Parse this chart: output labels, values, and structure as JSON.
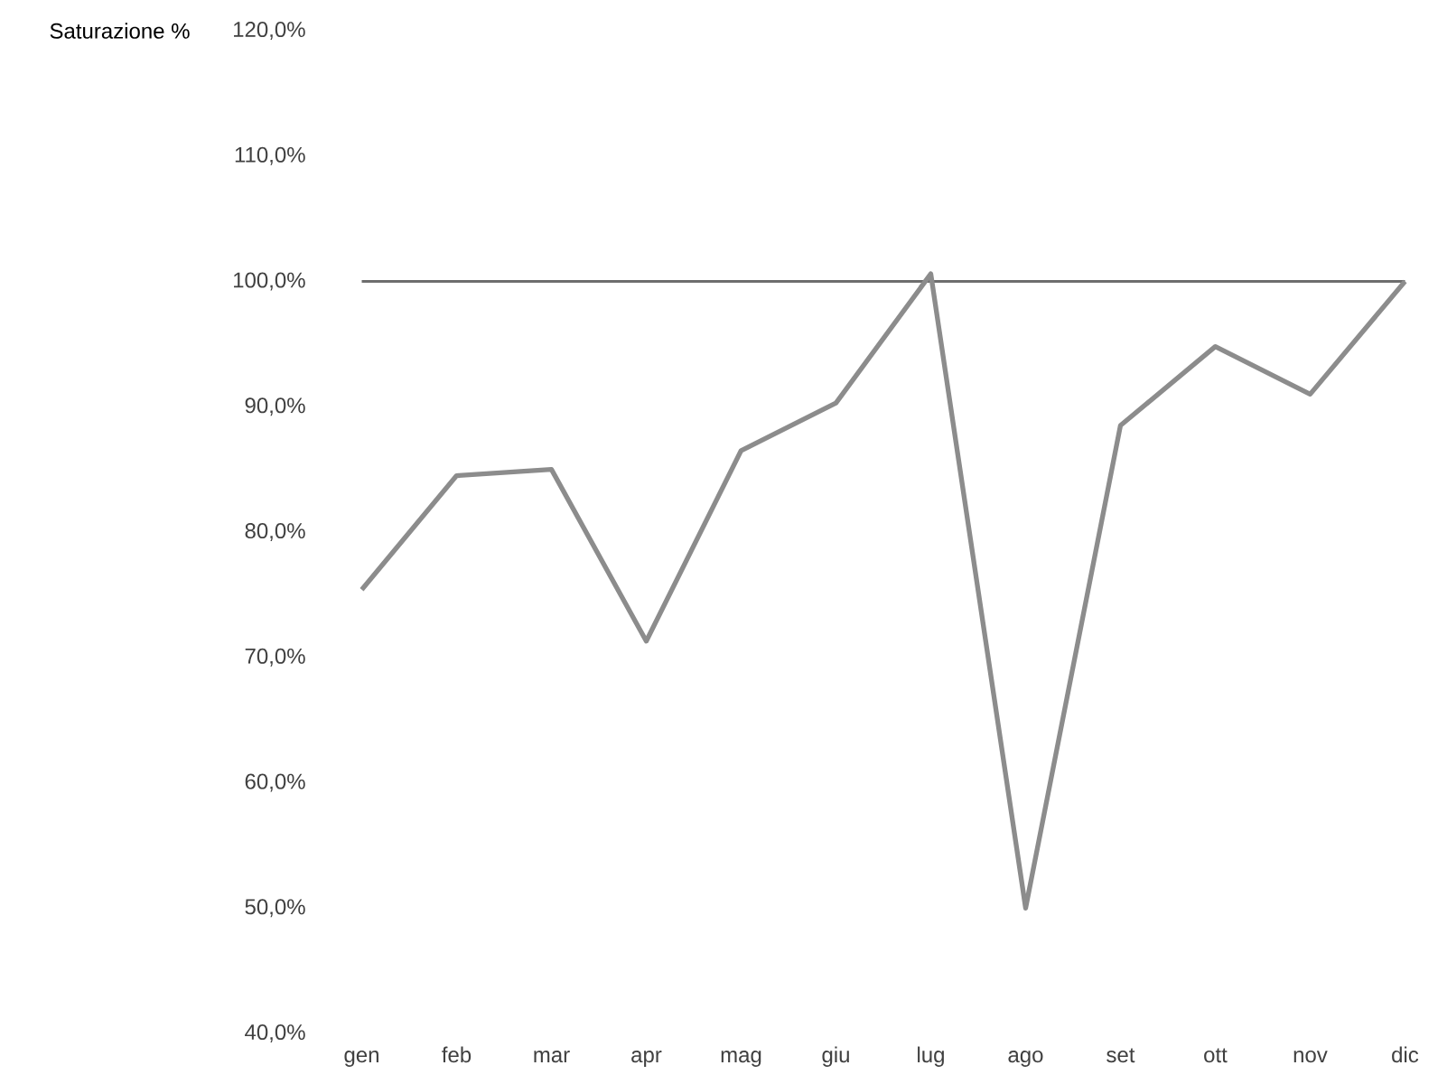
{
  "chart_data": {
    "type": "line",
    "ylabel": "Saturazione %",
    "categories": [
      "gen",
      "feb",
      "mar",
      "apr",
      "mag",
      "giu",
      "lug",
      "ago",
      "set",
      "ott",
      "nov",
      "dic"
    ],
    "values": [
      75.4,
      84.5,
      85.0,
      71.3,
      86.5,
      90.3,
      100.6,
      50.0,
      88.5,
      94.8,
      91.0,
      100.0
    ],
    "color": "#8c8c8c",
    "ylim": [
      40,
      120
    ],
    "yticks": [
      {
        "value": 40,
        "label": "40,0%"
      },
      {
        "value": 50,
        "label": "50,0%"
      },
      {
        "value": 60,
        "label": "60,0%"
      },
      {
        "value": 70,
        "label": "70,0%"
      },
      {
        "value": 80,
        "label": "80,0%"
      },
      {
        "value": 90,
        "label": "90,0%"
      },
      {
        "value": 100,
        "label": "100,0%"
      },
      {
        "value": 110,
        "label": "110,0%"
      },
      {
        "value": 120,
        "label": "120,0%"
      }
    ],
    "ref_lines": [
      {
        "axis": "y",
        "value": 100,
        "color": "#6e6e6e"
      }
    ],
    "grid": false,
    "marker": "none",
    "line_style": "solid"
  }
}
